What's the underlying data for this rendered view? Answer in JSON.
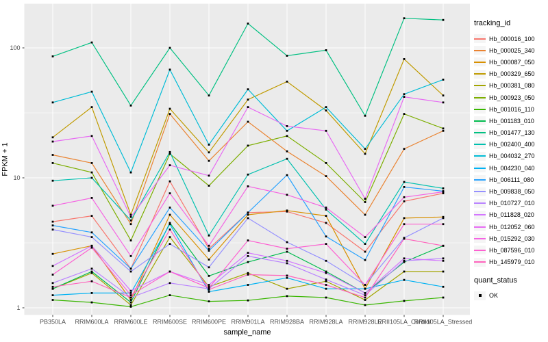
{
  "figure": {
    "background": "#FFFFFF",
    "panel_background": "#EBEBEB",
    "gridline_color": "#FFFFFF",
    "axis_text_color": "#4D4D4D",
    "tick_color": "#333333"
  },
  "x_axis": {
    "title": "sample_name"
  },
  "y_axis": {
    "title": "FPKM + 1"
  },
  "legend": {
    "tracking_title": "tracking_id",
    "quant_title": "quant_status",
    "quant_items": [
      {
        "label": "OK",
        "marker": "black-square"
      }
    ]
  },
  "chart_data": {
    "type": "line",
    "title": "",
    "xlabel": "sample_name",
    "ylabel": "FPKM + 1",
    "y_scale": "log10",
    "y_ticks": [
      1,
      10,
      100
    ],
    "ylim": [
      1,
      215
    ],
    "grid": true,
    "legend_position": "right",
    "marker": "black-square (quant_status = OK)",
    "categories": [
      "PB350LA",
      "RRIM600LA",
      "RRIM600LE",
      "RRIM600SE",
      "RRIM600PE",
      "RRIM901LA",
      "RRIM928BA",
      "RRIM928LA",
      "RRIM928LE",
      "RRII105LA_Control",
      "RRII105LA_Stressed"
    ],
    "series": [
      {
        "name": "Hb_000016_100",
        "color": "#F8766D",
        "values": [
          4.6,
          5.1,
          2.0,
          9.4,
          2.85,
          5.4,
          5.5,
          4.5,
          2.7,
          6.6,
          7.6
        ]
      },
      {
        "name": "Hb_000025_340",
        "color": "#EA8331",
        "values": [
          15,
          13,
          4.4,
          31,
          13.5,
          27,
          16,
          10.3,
          5.2,
          16.7,
          23
        ]
      },
      {
        "name": "Hb_000087_050",
        "color": "#D89000",
        "values": [
          2.6,
          3.0,
          1.15,
          5.2,
          2.35,
          5.2,
          5.6,
          5.1,
          1.4,
          4.9,
          5.0
        ]
      },
      {
        "name": "Hb_000329_650",
        "color": "#C09B00",
        "values": [
          20.5,
          35,
          5.2,
          34,
          15.7,
          40,
          55,
          33,
          15.3,
          82,
          43
        ]
      },
      {
        "name": "Hb_000381_080",
        "color": "#A3A500",
        "values": [
          1.4,
          1.85,
          1.05,
          3.5,
          1.45,
          1.85,
          1.4,
          1.6,
          1.15,
          1.9,
          1.9
        ]
      },
      {
        "name": "Hb_000923_050",
        "color": "#7CAE00",
        "values": [
          13,
          11,
          3.3,
          15.3,
          8.7,
          17.7,
          21,
          13,
          6.5,
          31,
          24
        ]
      },
      {
        "name": "Hb_001016_110",
        "color": "#39B600",
        "values": [
          1.15,
          1.1,
          1.02,
          1.25,
          1.12,
          1.14,
          1.23,
          1.2,
          1.05,
          1.13,
          1.2
        ]
      },
      {
        "name": "Hb_001183_010",
        "color": "#00BB4E",
        "values": [
          1.4,
          1.9,
          1.1,
          4.5,
          1.76,
          2.25,
          2.7,
          1.9,
          1.3,
          2.25,
          3.0
        ]
      },
      {
        "name": "Hb_001477_130",
        "color": "#00C081",
        "values": [
          86,
          110,
          36,
          100,
          43,
          154,
          87,
          96,
          30,
          169,
          164
        ]
      },
      {
        "name": "Hb_002400_400",
        "color": "#00C0AF",
        "values": [
          9.5,
          10,
          4.7,
          15.8,
          3.6,
          10.6,
          14,
          5.7,
          3.1,
          9.3,
          8.3
        ]
      },
      {
        "name": "Hb_004032_270",
        "color": "#00BCD6",
        "values": [
          38,
          46,
          11,
          68,
          18,
          48,
          23,
          35,
          16.7,
          44,
          57
        ]
      },
      {
        "name": "Hb_004230_040",
        "color": "#00B2F3",
        "values": [
          1.25,
          1.3,
          1.3,
          4.4,
          1.33,
          1.5,
          1.7,
          1.4,
          1.4,
          1.64,
          1.45
        ]
      },
      {
        "name": "Hb_006111_080",
        "color": "#29A3FF",
        "values": [
          4.3,
          3.8,
          2.0,
          5.9,
          2.75,
          5.4,
          10.5,
          3.54,
          2.33,
          8.5,
          7.9
        ]
      },
      {
        "name": "Hb_009838_050",
        "color": "#9590FF",
        "values": [
          4.0,
          3.5,
          1.9,
          3.1,
          2.05,
          4.9,
          3.2,
          2.3,
          1.5,
          3.45,
          4.9
        ]
      },
      {
        "name": "Hb_010727_010",
        "color": "#B983FF",
        "values": [
          1.55,
          2.0,
          1.2,
          1.55,
          1.4,
          2.5,
          2.2,
          1.65,
          1.25,
          2.3,
          2.4
        ]
      },
      {
        "name": "Hb_011828_020",
        "color": "#D376FF",
        "values": [
          2.1,
          3.0,
          1.35,
          1.9,
          1.5,
          2.65,
          2.3,
          1.85,
          1.3,
          2.4,
          2.3
        ]
      },
      {
        "name": "Hb_012052_060",
        "color": "#E76BF3",
        "values": [
          19,
          21,
          5.0,
          12.5,
          10.4,
          35,
          25,
          23,
          6.9,
          42,
          38
        ]
      },
      {
        "name": "Hb_015292_030",
        "color": "#F564E3",
        "values": [
          6.1,
          7.0,
          2.5,
          7.6,
          3.0,
          8.6,
          7.4,
          5.9,
          3.5,
          7.1,
          7.8
        ]
      },
      {
        "name": "Hb_087596_010",
        "color": "#FD61D1",
        "values": [
          1.8,
          2.9,
          1.25,
          1.9,
          1.42,
          3.3,
          2.85,
          3.1,
          1.5,
          4.4,
          4.4
        ]
      },
      {
        "name": "Hb_145979_010",
        "color": "#FF62BC",
        "values": [
          1.45,
          1.6,
          1.2,
          4.0,
          1.38,
          1.8,
          1.77,
          1.5,
          1.2,
          3.4,
          3.0
        ]
      }
    ]
  }
}
